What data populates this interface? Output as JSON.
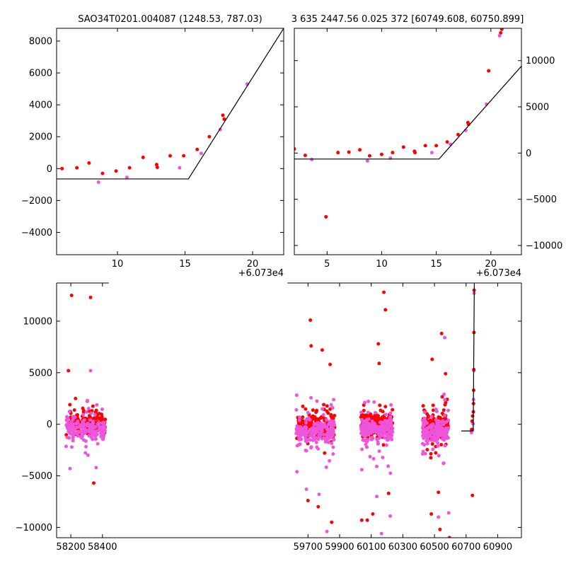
{
  "titles": {
    "left": "SAO34T0201.004087 (1248.53, 787.03)",
    "right": "3 635 2447.56 0.025 372 [60749.608, 60750.899]"
  },
  "colors": {
    "red": "#ff0000",
    "magenta": "#ee55dd",
    "line": "#000000"
  },
  "chart_data": [
    {
      "id": "top-left",
      "type": "scatter",
      "title": "SAO34T0201.004087 (1248.53, 787.03)",
      "x_offset_label": "+6.073e4",
      "xlim": [
        60735.5,
        60752.3
      ],
      "ylim": [
        -5400,
        8800
      ],
      "xticks": [
        {
          "v": 60740,
          "label": "10"
        },
        {
          "v": 60745,
          "label": "15"
        },
        {
          "v": 60750,
          "label": "20"
        }
      ],
      "yticks": [
        {
          "v": -4000,
          "label": "−4000"
        },
        {
          "v": -2000,
          "label": "−2000"
        },
        {
          "v": 0,
          "label": "0"
        },
        {
          "v": 2000,
          "label": "2000"
        },
        {
          "v": 4000,
          "label": "4000"
        },
        {
          "v": 6000,
          "label": "6000"
        },
        {
          "v": 8000,
          "label": "8000"
        }
      ],
      "y_axis_side": "left",
      "series": [
        {
          "color": "red",
          "points": [
            [
              60735.9,
              0
            ],
            [
              60737.0,
              50
            ],
            [
              60737.9,
              350
            ],
            [
              60738.9,
              -300
            ],
            [
              60739.9,
              -150
            ],
            [
              60740.9,
              50
            ],
            [
              60741.9,
              700
            ],
            [
              60742.9,
              250
            ],
            [
              60742.95,
              80
            ],
            [
              60743.9,
              800
            ],
            [
              60744.9,
              800
            ],
            [
              60745.9,
              1200
            ],
            [
              60746.8,
              2000
            ],
            [
              60747.8,
              3350
            ],
            [
              60747.9,
              3100
            ],
            [
              60749.6,
              5300
            ]
          ]
        },
        {
          "color": "magenta",
          "points": [
            [
              60738.6,
              -850
            ],
            [
              60740.7,
              -550
            ],
            [
              60744.6,
              50
            ],
            [
              60746.2,
              950
            ],
            [
              60747.6,
              2450
            ],
            [
              60749.6,
              5300
            ]
          ]
        }
      ],
      "line": [
        [
          60735.5,
          -650
        ],
        [
          60745.25,
          -650
        ],
        [
          60752.3,
          8800
        ]
      ]
    },
    {
      "id": "top-right",
      "type": "scatter",
      "title": "3 635 2447.56 0.025 372 [60749.608, 60750.899]",
      "x_offset_label": "+6.073e4",
      "xlim": [
        60732.0,
        60752.8
      ],
      "ylim": [
        -11000,
        13500
      ],
      "xticks": [
        {
          "v": 60735,
          "label": "5"
        },
        {
          "v": 60740,
          "label": "10"
        },
        {
          "v": 60745,
          "label": "15"
        },
        {
          "v": 60750,
          "label": "20"
        }
      ],
      "yticks": [
        {
          "v": -10000,
          "label": "−10000"
        },
        {
          "v": -5000,
          "label": "−5000"
        },
        {
          "v": 0,
          "label": "0"
        },
        {
          "v": 5000,
          "label": "5000"
        },
        {
          "v": 10000,
          "label": "10000"
        }
      ],
      "y_axis_side": "right",
      "series": [
        {
          "color": "red",
          "points": [
            [
              60732.0,
              450
            ],
            [
              60733.0,
              -250
            ],
            [
              60734.9,
              -6900
            ],
            [
              60736.0,
              50
            ],
            [
              60737.0,
              100
            ],
            [
              60738.0,
              350
            ],
            [
              60738.9,
              -300
            ],
            [
              60740.0,
              -150
            ],
            [
              60741.0,
              50
            ],
            [
              60742.0,
              650
            ],
            [
              60743.0,
              200
            ],
            [
              60743.05,
              50
            ],
            [
              60744.0,
              800
            ],
            [
              60745.0,
              800
            ],
            [
              60746.0,
              1200
            ],
            [
              60747.0,
              2000
            ],
            [
              60747.9,
              3300
            ],
            [
              60747.95,
              3100
            ],
            [
              60749.8,
              8900
            ],
            [
              60750.9,
              13000
            ],
            [
              60751.0,
              13400
            ]
          ]
        },
        {
          "color": "magenta",
          "points": [
            [
              60733.6,
              -700
            ],
            [
              60738.7,
              -850
            ],
            [
              60740.8,
              -550
            ],
            [
              60744.6,
              50
            ],
            [
              60746.3,
              950
            ],
            [
              60747.7,
              2450
            ],
            [
              60749.6,
              5300
            ],
            [
              60750.8,
              12700
            ]
          ]
        }
      ],
      "line": [
        [
          60732.0,
          -650
        ],
        [
          60745.25,
          -650
        ],
        [
          60752.8,
          9400
        ]
      ]
    },
    {
      "id": "bottom",
      "type": "scatter",
      "xlim": [
        58110,
        61050
      ],
      "ylim": [
        -11000,
        13700
      ],
      "xticks": [
        {
          "v": 58200,
          "label": "58200"
        },
        {
          "v": 58400,
          "label": "58400"
        },
        {
          "v": 59700,
          "label": "59700"
        },
        {
          "v": 59900,
          "label": "59900"
        },
        {
          "v": 60100,
          "label": "60100"
        },
        {
          "v": 60300,
          "label": "60300"
        },
        {
          "v": 60500,
          "label": "60500"
        },
        {
          "v": 60700,
          "label": "60700"
        },
        {
          "v": 60900,
          "label": "60900"
        }
      ],
      "yticks": [
        {
          "v": -10000,
          "label": "−10000"
        },
        {
          "v": -5000,
          "label": "−5000"
        },
        {
          "v": 0,
          "label": "0"
        },
        {
          "v": 5000,
          "label": "5000"
        },
        {
          "v": 10000,
          "label": "10000"
        }
      ],
      "axis_break": {
        "left_end": 58440,
        "right_start": 59570
      },
      "clusters": [
        {
          "x_range": [
            58170,
            58420
          ],
          "red_center": 200,
          "magenta_center": -500,
          "spread": 450,
          "n": 170
        },
        {
          "x_range": [
            59625,
            59870
          ],
          "red_center": -200,
          "magenta_center": -700,
          "spread": 550,
          "n": 190
        },
        {
          "x_range": [
            60035,
            60235
          ],
          "red_center": 100,
          "magenta_center": -600,
          "spread": 550,
          "n": 190
        },
        {
          "x_range": [
            60425,
            60590
          ],
          "red_center": 0,
          "magenta_center": -700,
          "spread": 550,
          "n": 170
        }
      ],
      "outliers": {
        "red": [
          [
            58205,
            12500
          ],
          [
            58325,
            12300
          ],
          [
            58185,
            5200
          ],
          [
            59715,
            10100
          ],
          [
            59720,
            7600
          ],
          [
            59790,
            7200
          ],
          [
            59840,
            5800
          ],
          [
            60145,
            7800
          ],
          [
            60180,
            12800
          ],
          [
            60190,
            11100
          ],
          [
            60150,
            5900
          ],
          [
            60485,
            6300
          ],
          [
            60545,
            8800
          ],
          [
            60570,
            4900
          ],
          [
            58345,
            -5700
          ],
          [
            59700,
            -7400
          ],
          [
            59765,
            -8000
          ],
          [
            59850,
            -9500
          ],
          [
            60040,
            -9300
          ],
          [
            60075,
            -9300
          ],
          [
            60110,
            -8700
          ],
          [
            60480,
            -8700
          ],
          [
            60535,
            -10200
          ],
          [
            60595,
            -11000
          ],
          [
            60525,
            -6600
          ],
          [
            60210,
            -6700
          ],
          [
            60740,
            -6900
          ]
        ],
        "magenta": [
          [
            58325,
            5200
          ],
          [
            60565,
            8400
          ],
          [
            58195,
            -4300
          ],
          [
            58360,
            -4200
          ],
          [
            59630,
            -4600
          ],
          [
            59690,
            -6300
          ],
          [
            59770,
            -6800
          ],
          [
            59820,
            -10400
          ],
          [
            60135,
            -7000
          ],
          [
            60220,
            -8900
          ],
          [
            60165,
            -10600
          ],
          [
            60525,
            -9000
          ],
          [
            60590,
            -8600
          ]
        ]
      },
      "extra_points": {
        "red": [
          [
            60735,
            -500
          ],
          [
            60738,
            300
          ],
          [
            60741,
            800
          ],
          [
            60746,
            1200
          ],
          [
            60747,
            2000
          ],
          [
            60748,
            3300
          ],
          [
            60749,
            5300
          ],
          [
            60750,
            8900
          ],
          [
            60751,
            13000
          ]
        ],
        "magenta": [
          [
            60734,
            -800
          ],
          [
            60740,
            -500
          ],
          [
            60744,
            50
          ],
          [
            60747,
            2400
          ],
          [
            60749,
            5200
          ],
          [
            60751,
            12700
          ]
        ]
      },
      "line": [
        [
          60670,
          -650
        ],
        [
          60745,
          -650
        ],
        [
          60752,
          13700
        ]
      ]
    }
  ]
}
